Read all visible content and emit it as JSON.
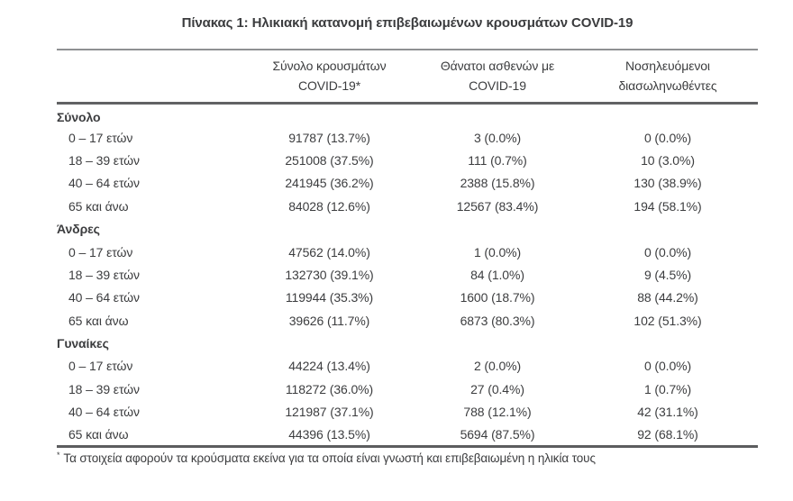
{
  "page": {
    "title": "Πίνακας 1: Ηλικιακή κατανομή επιβεβαιωμένων κρουσμάτων COVID-19"
  },
  "colors": {
    "text": "#3c3d3f",
    "rule_light": "#8f9092",
    "rule_dark": "#5c5d5f",
    "background": "#ffffff"
  },
  "table": {
    "columns": [
      {
        "line1": "Σύνολο κρουσμάτων",
        "line2": "COVID-19*"
      },
      {
        "line1": "Θάνατοι ασθενών με",
        "line2": "COVID-19"
      },
      {
        "line1": "Νοσηλευόμενοι",
        "line2": "διασωληνωθέντες"
      }
    ],
    "sections": [
      {
        "label": "Σύνολο",
        "rows": [
          {
            "age": "0 – 17 ετών",
            "cases": "91787 (13.7%)",
            "deaths": "3 (0.0%)",
            "intubated": "0 (0.0%)"
          },
          {
            "age": "18 – 39 ετών",
            "cases": "251008 (37.5%)",
            "deaths": "111 (0.7%)",
            "intubated": "10 (3.0%)"
          },
          {
            "age": "40 – 64 ετών",
            "cases": "241945 (36.2%)",
            "deaths": "2388 (15.8%)",
            "intubated": "130 (38.9%)"
          },
          {
            "age": "65 και άνω",
            "cases": "84028 (12.6%)",
            "deaths": "12567 (83.4%)",
            "intubated": "194 (58.1%)"
          }
        ]
      },
      {
        "label": "Άνδρες",
        "rows": [
          {
            "age": "0 – 17 ετών",
            "cases": "47562 (14.0%)",
            "deaths": "1 (0.0%)",
            "intubated": "0 (0.0%)"
          },
          {
            "age": "18 – 39 ετών",
            "cases": "132730 (39.1%)",
            "deaths": "84 (1.0%)",
            "intubated": "9 (4.5%)"
          },
          {
            "age": "40 – 64 ετών",
            "cases": "119944 (35.3%)",
            "deaths": "1600 (18.7%)",
            "intubated": "88 (44.2%)"
          },
          {
            "age": "65 και άνω",
            "cases": "39626 (11.7%)",
            "deaths": "6873 (80.3%)",
            "intubated": "102 (51.3%)"
          }
        ]
      },
      {
        "label": "Γυναίκες",
        "rows": [
          {
            "age": "0 – 17 ετών",
            "cases": "44224 (13.4%)",
            "deaths": "2 (0.0%)",
            "intubated": "0 (0.0%)"
          },
          {
            "age": "18 – 39 ετών",
            "cases": "118272 (36.0%)",
            "deaths": "27 (0.4%)",
            "intubated": "1 (0.7%)"
          },
          {
            "age": "40 – 64 ετών",
            "cases": "121987 (37.1%)",
            "deaths": "788 (12.1%)",
            "intubated": "42 (31.1%)"
          },
          {
            "age": "65 και άνω",
            "cases": "44396 (13.5%)",
            "deaths": "5694 (87.5%)",
            "intubated": "92 (68.1%)"
          }
        ]
      }
    ],
    "footnote_marker": "*",
    "footnote_text": "Τα στοιχεία αφορούν τα κρούσματα εκείνα για τα οποία είναι γνωστή και επιβεβαιωμένη η ηλικία τους"
  }
}
